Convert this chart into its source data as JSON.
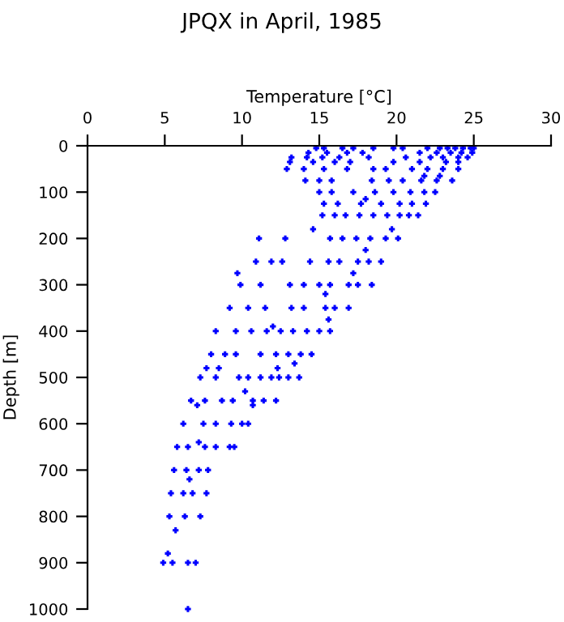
{
  "chart_data": {
    "type": "scatter",
    "title": "JPQX in April, 1985",
    "xlabel": "Temperature [°C]",
    "ylabel": "Depth [m]",
    "xlim": [
      0,
      30
    ],
    "xticks": [
      0,
      5,
      10,
      15,
      20,
      25,
      30
    ],
    "ylim": [
      1000,
      0
    ],
    "yticks": [
      0,
      100,
      200,
      300,
      400,
      500,
      600,
      700,
      800,
      900,
      1000
    ],
    "grid": false,
    "marker": "cross",
    "series": [
      {
        "color": "#0000ff",
        "x": [
          14.8,
          15.3,
          16.5,
          17.2,
          18.5,
          19.8,
          20.4,
          22.0,
          22.8,
          23.3,
          23.8,
          24.3,
          24.8,
          25.0,
          14.3,
          15.5,
          16.8,
          17.8,
          21.5,
          22.6,
          23.5,
          24.2,
          24.9,
          13.2,
          14.2,
          15.2,
          16.3,
          18.2,
          20.6,
          22.2,
          23.0,
          24.0,
          24.6,
          13.1,
          14.6,
          16.0,
          17.0,
          19.8,
          21.5,
          23.2,
          24.0,
          12.9,
          14.0,
          15.3,
          16.8,
          18.5,
          19.3,
          21.0,
          22.0,
          23.0,
          24.0,
          21.8,
          22.8,
          14.1,
          15.0,
          15.8,
          18.4,
          19.5,
          20.4,
          21.6,
          22.6,
          23.6,
          15.0,
          15.8,
          17.2,
          18.6,
          19.8,
          20.9,
          21.8,
          22.5,
          18.0,
          15.3,
          16.2,
          17.7,
          19.0,
          20.2,
          21.0,
          21.9,
          15.2,
          16.0,
          16.7,
          17.6,
          18.5,
          19.4,
          20.2,
          20.8,
          21.4,
          14.6,
          19.7,
          11.1,
          12.8,
          15.7,
          16.5,
          17.4,
          18.3,
          19.3,
          20.1,
          18.0,
          10.9,
          11.9,
          12.6,
          14.4,
          15.6,
          16.3,
          17.5,
          18.2,
          19.0,
          9.7,
          17.2,
          9.9,
          11.2,
          13.1,
          14.0,
          15.0,
          15.7,
          16.9,
          17.5,
          18.4,
          15.4,
          9.2,
          10.4,
          11.5,
          13.2,
          14.0,
          15.4,
          16.0,
          16.9,
          15.6,
          12.0,
          8.3,
          9.6,
          10.6,
          11.6,
          12.5,
          13.3,
          14.2,
          15.0,
          15.7,
          8.0,
          8.9,
          9.6,
          11.2,
          12.2,
          13.0,
          13.8,
          14.5,
          13.4,
          7.7,
          8.5,
          12.3,
          7.3,
          8.3,
          9.8,
          10.4,
          11.2,
          11.9,
          12.4,
          13.0,
          13.7,
          10.2,
          6.7,
          7.6,
          8.7,
          9.4,
          10.7,
          11.4,
          12.2,
          7.1,
          10.7,
          6.2,
          7.5,
          8.3,
          9.3,
          10.0,
          10.4,
          7.2,
          5.8,
          6.5,
          7.6,
          8.3,
          9.2,
          9.5,
          5.6,
          6.4,
          7.2,
          7.8,
          6.6,
          5.4,
          6.2,
          6.8,
          7.7,
          5.3,
          6.3,
          7.3,
          5.7,
          5.2,
          4.9,
          5.5,
          6.5,
          7.0,
          6.5
        ],
        "values": [
          5,
          5,
          5,
          5,
          5,
          5,
          5,
          5,
          5,
          5,
          5,
          5,
          5,
          5,
          15,
          15,
          15,
          15,
          15,
          15,
          15,
          15,
          15,
          25,
          25,
          25,
          25,
          25,
          25,
          25,
          25,
          25,
          25,
          35,
          35,
          35,
          35,
          35,
          35,
          35,
          35,
          50,
          50,
          50,
          50,
          50,
          50,
          50,
          50,
          50,
          50,
          65,
          65,
          75,
          75,
          75,
          75,
          75,
          75,
          75,
          75,
          75,
          100,
          100,
          100,
          100,
          100,
          100,
          100,
          100,
          115,
          125,
          125,
          125,
          125,
          125,
          125,
          125,
          150,
          150,
          150,
          150,
          150,
          150,
          150,
          150,
          150,
          180,
          180,
          200,
          200,
          200,
          200,
          200,
          200,
          200,
          200,
          225,
          250,
          250,
          250,
          250,
          250,
          250,
          250,
          250,
          250,
          275,
          275,
          300,
          300,
          300,
          300,
          300,
          300,
          300,
          300,
          300,
          320,
          350,
          350,
          350,
          350,
          350,
          350,
          350,
          350,
          375,
          390,
          400,
          400,
          400,
          400,
          400,
          400,
          400,
          400,
          400,
          450,
          450,
          450,
          450,
          450,
          450,
          450,
          450,
          470,
          480,
          480,
          480,
          500,
          500,
          500,
          500,
          500,
          500,
          500,
          500,
          500,
          530,
          550,
          550,
          550,
          550,
          550,
          550,
          550,
          560,
          560,
          600,
          600,
          600,
          600,
          600,
          600,
          640,
          650,
          650,
          650,
          650,
          650,
          650,
          700,
          700,
          700,
          700,
          720,
          750,
          750,
          750,
          750,
          800,
          800,
          800,
          830,
          880,
          900,
          900,
          900,
          900,
          1000
        ]
      }
    ]
  }
}
